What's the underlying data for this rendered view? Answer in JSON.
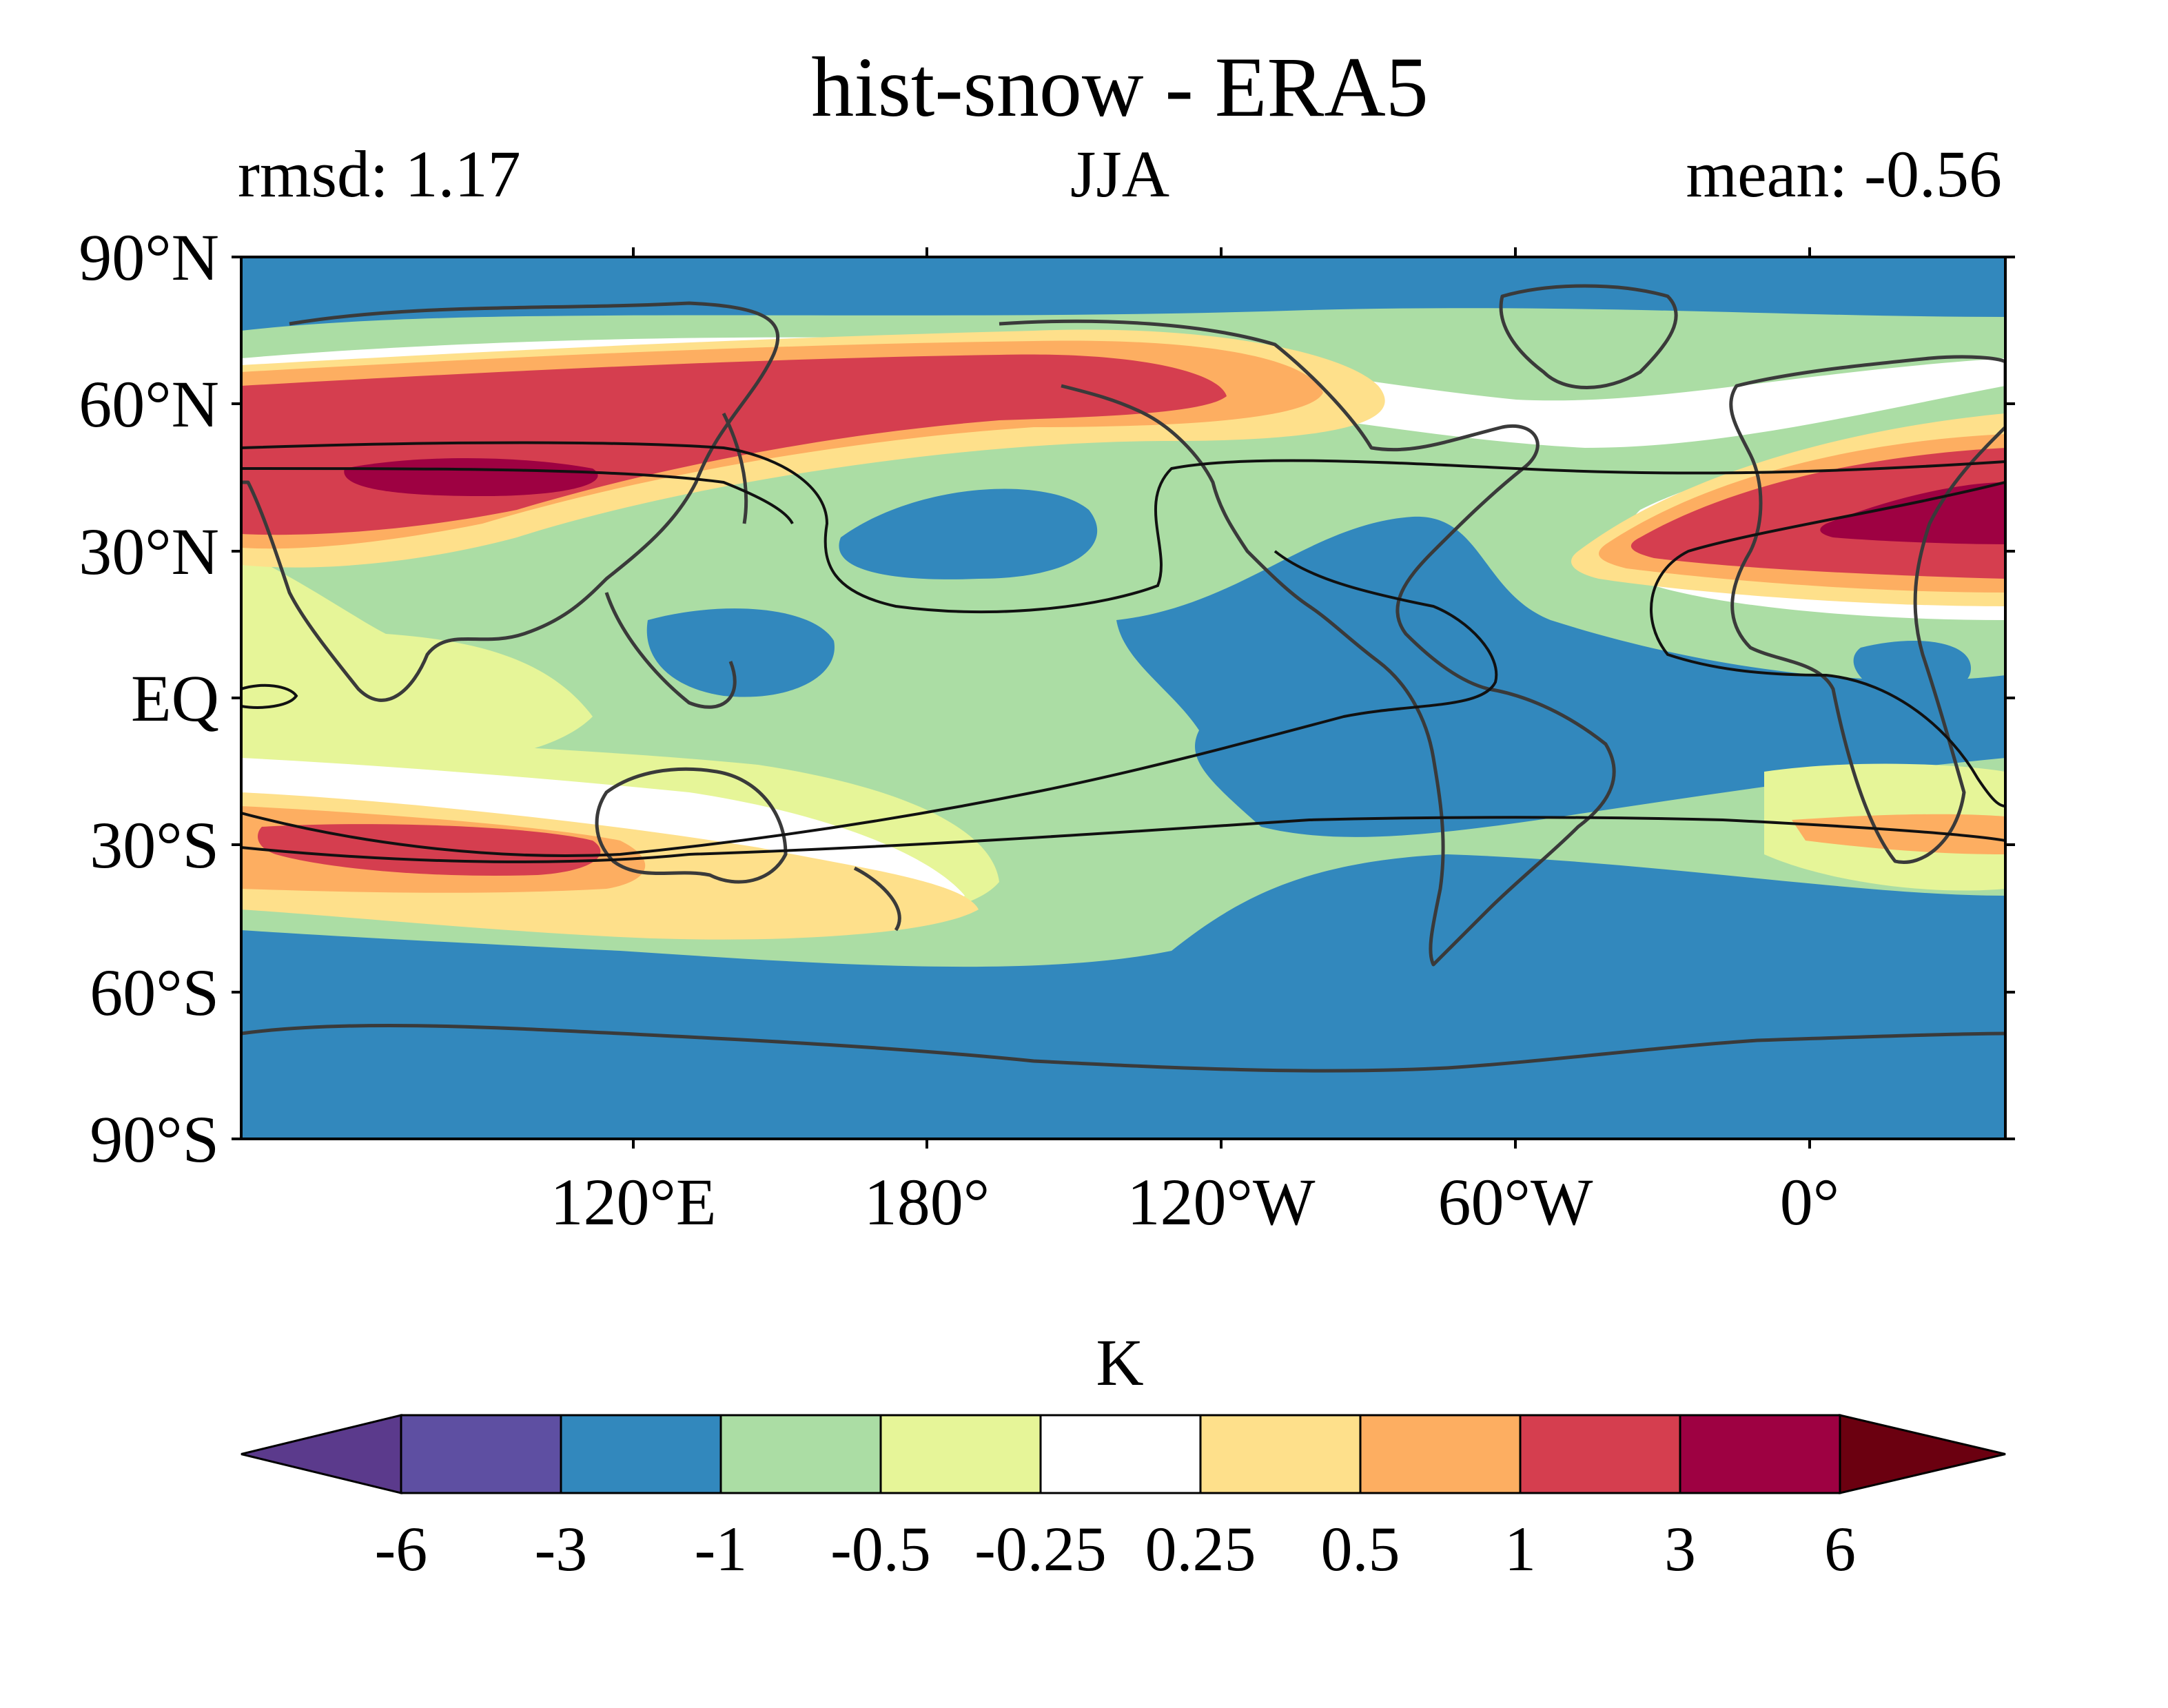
{
  "title": "hist-snow - ERA5",
  "subtitle_left": "rmsd: 1.17",
  "subtitle_center": "JJA",
  "subtitle_right": "mean: -0.56",
  "map": {
    "lat_labels": [
      "90°N",
      "60°N",
      "30°N",
      "EQ",
      "30°S",
      "60°S",
      "90°S"
    ],
    "lon_labels": [
      "120°E",
      "180°",
      "120°W",
      "60°W",
      "0°"
    ],
    "lon_range": "40°E to 40°E (centered on 160°W)",
    "lat_range": [
      -90,
      90
    ]
  },
  "colorbar": {
    "label": "K",
    "bounds": [
      "-6",
      "-3",
      "-1",
      "-0.5",
      "-0.25",
      "0.25",
      "0.5",
      "1",
      "3",
      "6"
    ],
    "colors": [
      "#5e4fa2",
      "#3288bd",
      "#abdda4",
      "#e6f598",
      "#ffffff",
      "#fee08b",
      "#fdae61",
      "#d53e4f",
      "#9e0142"
    ],
    "extend_low_color": "#5b3a8c",
    "extend_high_color": "#6b0010"
  },
  "palette": {
    "strong_neg": "#3288bd",
    "neg": "#abdda4",
    "weak_neg": "#e6f598",
    "neutral": "#ffffff",
    "weak_pos": "#fee08b",
    "pos": "#fdae61",
    "strong_pos": "#d53e4f",
    "very_strong_pos": "#9e0142",
    "coast": "#3a3a3a"
  }
}
